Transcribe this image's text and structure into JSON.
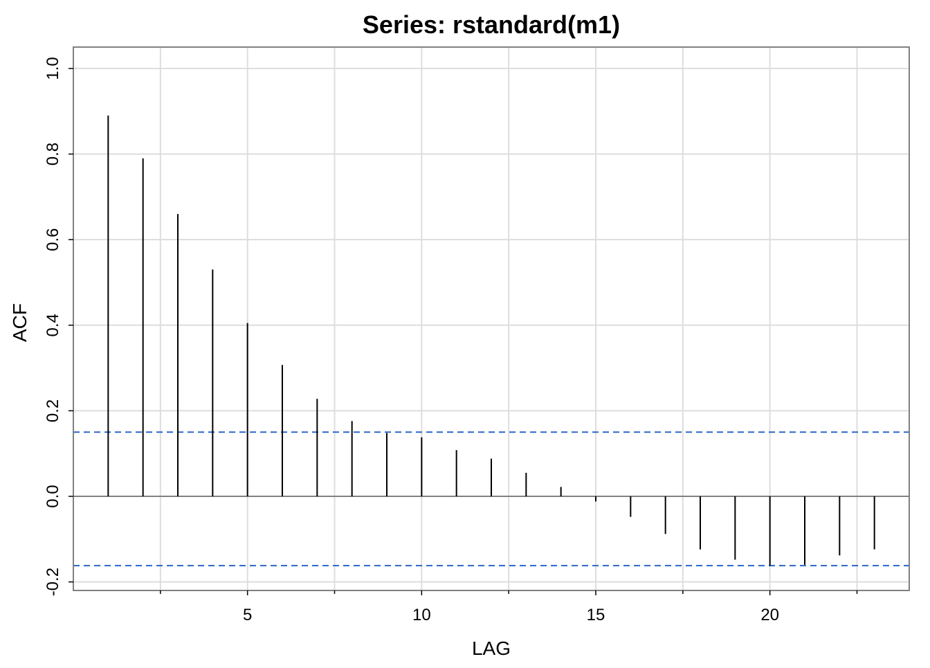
{
  "chart_data": {
    "type": "bar",
    "subtype": "acf-stem",
    "title": "Series:  rstandard(m1)",
    "xlabel": "LAG",
    "ylabel": "ACF",
    "xlim": [
      0,
      24
    ],
    "ylim": [
      -0.22,
      1.05
    ],
    "x_ticks": [
      5,
      10,
      15,
      20
    ],
    "x_minor_ticks": [
      2.5,
      7.5,
      12.5,
      17.5,
      22.5
    ],
    "y_ticks": [
      -0.2,
      0.0,
      0.2,
      0.4,
      0.6,
      0.8,
      1.0
    ],
    "grid": true,
    "lags": [
      1,
      2,
      3,
      4,
      5,
      6,
      7,
      8,
      9,
      10,
      11,
      12,
      13,
      14,
      15,
      16,
      17,
      18,
      19,
      20,
      21,
      22,
      23
    ],
    "values": [
      0.89,
      0.79,
      0.66,
      0.53,
      0.405,
      0.307,
      0.228,
      0.176,
      0.148,
      0.138,
      0.108,
      0.088,
      0.055,
      0.022,
      -0.012,
      -0.048,
      -0.088,
      -0.124,
      -0.148,
      -0.162,
      -0.16,
      -0.138,
      -0.124
    ],
    "confidence_bounds": [
      0.15,
      -0.162
    ],
    "colors": {
      "stem": "#000000",
      "confidence": "#2b64c9",
      "grid": "#dddddd",
      "frame": "#808080",
      "zero_line": "#808080"
    }
  }
}
